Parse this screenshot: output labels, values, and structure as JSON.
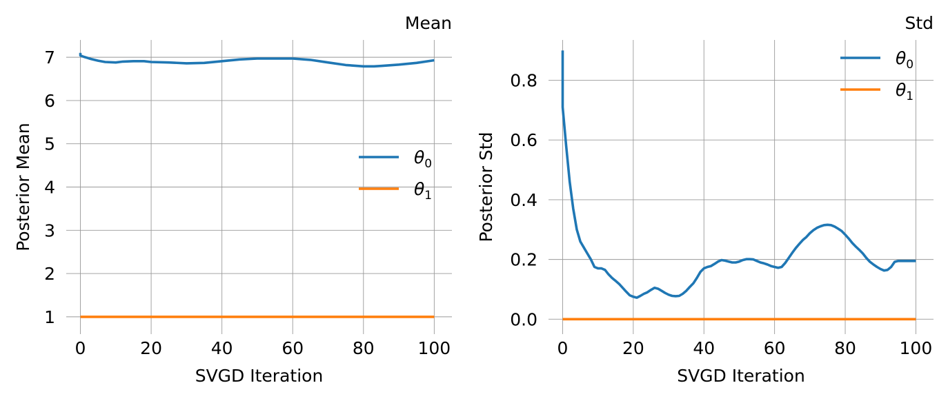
{
  "colors": {
    "theta0": "#1f77b4",
    "theta1": "#ff7f0e",
    "grid": "#999999"
  },
  "chart_data": [
    {
      "type": "line",
      "title": "Mean",
      "xlabel": "SVGD Iteration",
      "ylabel": "Posterior Mean",
      "xlim": [
        -4,
        105
      ],
      "ylim": [
        0.6,
        7.4
      ],
      "xticks": [
        0,
        20,
        40,
        60,
        80,
        100
      ],
      "yticks": [
        1,
        2,
        3,
        4,
        5,
        6,
        7
      ],
      "grid": true,
      "legend_position": "center-right",
      "series": [
        {
          "name": "θ",
          "name_sub": "0",
          "color": "#1f77b4",
          "x": [
            0,
            0,
            1,
            3,
            5,
            7,
            10,
            12,
            15,
            18,
            20,
            25,
            30,
            35,
            40,
            45,
            50,
            55,
            60,
            65,
            70,
            75,
            80,
            83,
            85,
            90,
            95,
            100
          ],
          "y": [
            7.1,
            7.04,
            7.01,
            6.96,
            6.92,
            6.89,
            6.88,
            6.9,
            6.91,
            6.91,
            6.89,
            6.88,
            6.86,
            6.87,
            6.91,
            6.95,
            6.97,
            6.97,
            6.97,
            6.94,
            6.88,
            6.82,
            6.79,
            6.79,
            6.8,
            6.83,
            6.87,
            6.93
          ]
        },
        {
          "name": "θ",
          "name_sub": "1",
          "color": "#ff7f0e",
          "x": [
            0,
            100
          ],
          "y": [
            1.0,
            1.0
          ]
        }
      ]
    },
    {
      "type": "line",
      "title": "Std",
      "xlabel": "SVGD Iteration",
      "ylabel": "Posterior Std",
      "xlim": [
        -4,
        105
      ],
      "ylim": [
        -0.05,
        0.935
      ],
      "xticks": [
        0,
        20,
        40,
        60,
        80,
        100
      ],
      "yticks": [
        0.0,
        0.2,
        0.4,
        0.6,
        0.8
      ],
      "ytick_labels": [
        "0.0",
        "0.2",
        "0.4",
        "0.6",
        "0.8"
      ],
      "grid": true,
      "legend_position": "upper-right",
      "series": [
        {
          "name": "θ",
          "name_sub": "0",
          "color": "#1f77b4",
          "x": [
            0,
            0,
            1,
            2,
            3,
            4,
            5,
            6,
            7,
            8,
            9,
            10,
            11,
            12,
            13,
            14,
            15,
            16,
            17,
            18,
            19,
            20,
            21,
            22,
            23,
            24,
            25,
            26,
            27,
            28,
            29,
            30,
            31,
            32,
            33,
            34,
            35,
            36,
            37,
            38,
            39,
            40,
            41,
            42,
            43,
            44,
            45,
            46,
            47,
            48,
            49,
            50,
            51,
            52,
            53,
            54,
            55,
            56,
            57,
            58,
            59,
            60,
            61,
            62,
            63,
            64,
            65,
            66,
            67,
            68,
            69,
            70,
            71,
            72,
            73,
            74,
            75,
            76,
            77,
            78,
            79,
            80,
            81,
            82,
            83,
            84,
            85,
            86,
            87,
            88,
            89,
            90,
            91,
            92,
            93,
            94,
            95,
            96,
            97,
            98,
            99,
            100
          ],
          "y": [
            0.9,
            0.71,
            0.58,
            0.46,
            0.37,
            0.3,
            0.26,
            0.24,
            0.22,
            0.2,
            0.175,
            0.17,
            0.17,
            0.165,
            0.15,
            0.138,
            0.128,
            0.118,
            0.105,
            0.092,
            0.08,
            0.075,
            0.072,
            0.078,
            0.085,
            0.09,
            0.098,
            0.105,
            0.102,
            0.095,
            0.088,
            0.082,
            0.078,
            0.077,
            0.078,
            0.085,
            0.095,
            0.108,
            0.12,
            0.138,
            0.158,
            0.17,
            0.175,
            0.178,
            0.185,
            0.193,
            0.198,
            0.196,
            0.193,
            0.19,
            0.19,
            0.193,
            0.198,
            0.201,
            0.201,
            0.2,
            0.195,
            0.19,
            0.187,
            0.183,
            0.178,
            0.175,
            0.172,
            0.175,
            0.188,
            0.205,
            0.222,
            0.238,
            0.252,
            0.265,
            0.275,
            0.288,
            0.298,
            0.306,
            0.311,
            0.315,
            0.316,
            0.315,
            0.31,
            0.303,
            0.295,
            0.283,
            0.27,
            0.255,
            0.243,
            0.232,
            0.22,
            0.205,
            0.192,
            0.183,
            0.175,
            0.168,
            0.163,
            0.165,
            0.175,
            0.192,
            0.195,
            0.195,
            0.195,
            0.195,
            0.195,
            0.195
          ],
          "x_fix": true
        },
        {
          "name": "θ",
          "name_sub": "1",
          "color": "#ff7f0e",
          "x": [
            0,
            100
          ],
          "y": [
            0.0,
            0.0
          ]
        }
      ]
    }
  ]
}
